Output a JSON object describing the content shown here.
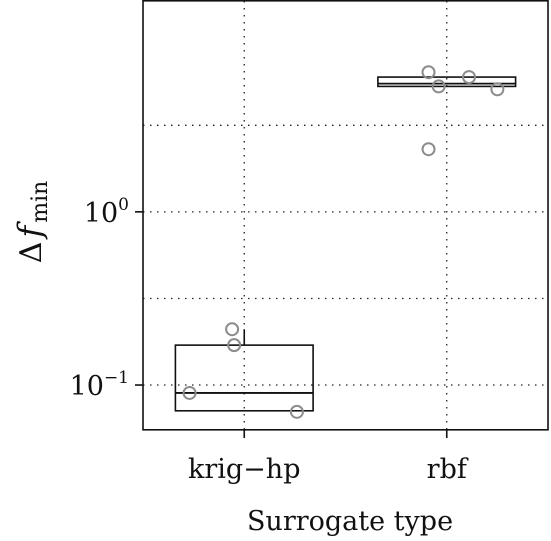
{
  "chart_data": {
    "type": "box",
    "title": "",
    "xlabel": "Surrogate type",
    "ylabel": {
      "symbol": "Δ",
      "variable": "f",
      "subscript": "min"
    },
    "yscale": "log10",
    "ylim": [
      0.055,
      16.5
    ],
    "categories": [
      "krig−hp",
      "rbf"
    ],
    "y_ticks": [
      {
        "value": 0.1,
        "base": "10",
        "exponent": "−1"
      },
      {
        "value": 1,
        "base": "10",
        "exponent": "0"
      }
    ],
    "y_minor_grid": [
      0.316,
      3.16
    ],
    "grid": true,
    "boxes": [
      {
        "category": "krig−hp",
        "q1": 0.071,
        "median": 0.09,
        "q3": 0.17,
        "whisker_low": 0.071,
        "whisker_high": 0.21
      },
      {
        "category": "rbf",
        "q1": 5.3,
        "median": 5.5,
        "q3": 6.0,
        "whisker_low": 5.3,
        "whisker_high": 6.0
      }
    ],
    "points": [
      {
        "category": "krig−hp",
        "jitter": -0.27,
        "y": 0.09
      },
      {
        "category": "krig−hp",
        "jitter": -0.06,
        "y": 0.21
      },
      {
        "category": "krig−hp",
        "jitter": -0.05,
        "y": 0.17
      },
      {
        "category": "krig−hp",
        "jitter": 0.26,
        "y": 0.07
      },
      {
        "category": "rbf",
        "jitter": -0.09,
        "y": 6.4
      },
      {
        "category": "rbf",
        "jitter": -0.04,
        "y": 5.3
      },
      {
        "category": "rbf",
        "jitter": 0.11,
        "y": 6.0
      },
      {
        "category": "rbf",
        "jitter": 0.25,
        "y": 5.1
      },
      {
        "category": "rbf",
        "jitter": -0.09,
        "y": 2.3
      }
    ]
  }
}
